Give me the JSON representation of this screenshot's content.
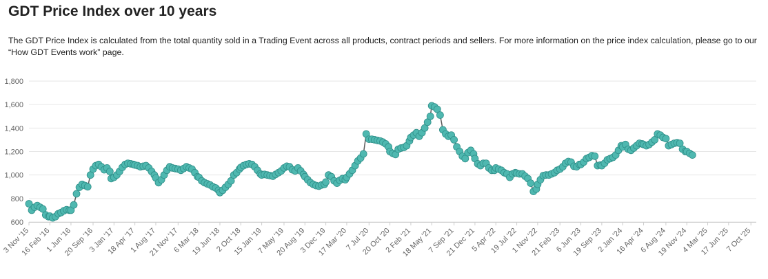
{
  "page": {
    "title": "GDT Price Index over 10 years",
    "description": "The GDT Price Index is calculated from the total quantity sold in a Trading Event across all products, contract periods and sellers. For more information on the price index calculation, please go to our “How GDT Events work” page."
  },
  "colors": {
    "line": "#5a5a5a",
    "marker": "#4fb8b0",
    "marker_edge": "#2f8f89",
    "grid": "#e6e6e6"
  },
  "chart_data": {
    "type": "line",
    "title": "GDT Price Index over 10 years",
    "xlabel": "",
    "ylabel": "",
    "ylim": [
      600,
      1800
    ],
    "yticks": [
      600,
      800,
      1000,
      1200,
      1400,
      1600,
      1800
    ],
    "ytick_labels": [
      "600",
      "800",
      "1,000",
      "1,200",
      "1,400",
      "1,600",
      "1,800"
    ],
    "grid": true,
    "xlim_index": [
      0,
      3653
    ],
    "xticks": [
      {
        "label": "3 Nov '15",
        "day": 0
      },
      {
        "label": "16 Feb '16",
        "day": 105
      },
      {
        "label": "1 Jun '16",
        "day": 211
      },
      {
        "label": "20 Sep '16",
        "day": 322
      },
      {
        "label": "3 Jan '17",
        "day": 427
      },
      {
        "label": "18 Apr '17",
        "day": 532
      },
      {
        "label": "1 Aug '17",
        "day": 637
      },
      {
        "label": "21 Nov '17",
        "day": 749
      },
      {
        "label": "6 Mar '18",
        "day": 854
      },
      {
        "label": "19 Jun '18",
        "day": 959
      },
      {
        "label": "2 Oct '18",
        "day": 1064
      },
      {
        "label": "15 Jan '19",
        "day": 1169
      },
      {
        "label": "7 May '19",
        "day": 1281
      },
      {
        "label": "20 Aug '19",
        "day": 1386
      },
      {
        "label": "3 Dec '19",
        "day": 1491
      },
      {
        "label": "17 Mar '20",
        "day": 1596
      },
      {
        "label": "7 Jul '20",
        "day": 1708
      },
      {
        "label": "20 Oct '20",
        "day": 1813
      },
      {
        "label": "2 Feb '21",
        "day": 1918
      },
      {
        "label": "18 May '21",
        "day": 2023
      },
      {
        "label": "7 Sep '21",
        "day": 2135
      },
      {
        "label": "21 Dec '21",
        "day": 2240
      },
      {
        "label": "5 Apr '22",
        "day": 2345
      },
      {
        "label": "19 Jul '22",
        "day": 2450
      },
      {
        "label": "1 Nov '22",
        "day": 2555
      },
      {
        "label": "21 Feb '23",
        "day": 2667
      },
      {
        "label": "6 Jun '23",
        "day": 2772
      },
      {
        "label": "19 Sep '23",
        "day": 2877
      },
      {
        "label": "2 Jan '24",
        "day": 2982
      },
      {
        "label": "16 Apr '24",
        "day": 3087
      },
      {
        "label": "6 Aug '24",
        "day": 3199
      },
      {
        "label": "19 Nov '24",
        "day": 3304
      },
      {
        "label": "4 Mar '25",
        "day": 3409
      },
      {
        "label": "17 Jun '25",
        "day": 3514
      },
      {
        "label": "7 Oct '25",
        "day": 3626
      }
    ],
    "series": [
      {
        "values": [
          [
            0,
            755
          ],
          [
            14,
            700
          ],
          [
            28,
            725
          ],
          [
            42,
            740
          ],
          [
            56,
            725
          ],
          [
            70,
            710
          ],
          [
            84,
            660
          ],
          [
            98,
            645
          ],
          [
            105,
            650
          ],
          [
            119,
            635
          ],
          [
            133,
            645
          ],
          [
            147,
            670
          ],
          [
            161,
            680
          ],
          [
            175,
            695
          ],
          [
            189,
            705
          ],
          [
            203,
            700
          ],
          [
            211,
            700
          ],
          [
            225,
            745
          ],
          [
            239,
            840
          ],
          [
            253,
            895
          ],
          [
            267,
            920
          ],
          [
            281,
            910
          ],
          [
            295,
            900
          ],
          [
            309,
            1000
          ],
          [
            322,
            1050
          ],
          [
            336,
            1080
          ],
          [
            350,
            1090
          ],
          [
            364,
            1070
          ],
          [
            378,
            1045
          ],
          [
            392,
            1060
          ],
          [
            406,
            1030
          ],
          [
            413,
            970
          ],
          [
            427,
            980
          ],
          [
            441,
            1000
          ],
          [
            455,
            1030
          ],
          [
            469,
            1065
          ],
          [
            483,
            1090
          ],
          [
            497,
            1100
          ],
          [
            511,
            1095
          ],
          [
            525,
            1090
          ],
          [
            532,
            1085
          ],
          [
            546,
            1080
          ],
          [
            560,
            1070
          ],
          [
            574,
            1075
          ],
          [
            588,
            1080
          ],
          [
            602,
            1060
          ],
          [
            616,
            1030
          ],
          [
            630,
            1000
          ],
          [
            637,
            975
          ],
          [
            651,
            935
          ],
          [
            665,
            960
          ],
          [
            679,
            1000
          ],
          [
            693,
            1040
          ],
          [
            707,
            1070
          ],
          [
            721,
            1060
          ],
          [
            735,
            1055
          ],
          [
            749,
            1050
          ],
          [
            763,
            1040
          ],
          [
            777,
            1055
          ],
          [
            791,
            1070
          ],
          [
            805,
            1060
          ],
          [
            819,
            1050
          ],
          [
            833,
            1020
          ],
          [
            847,
            985
          ],
          [
            854,
            980
          ],
          [
            868,
            950
          ],
          [
            882,
            935
          ],
          [
            896,
            925
          ],
          [
            910,
            915
          ],
          [
            924,
            900
          ],
          [
            938,
            890
          ],
          [
            952,
            870
          ],
          [
            959,
            850
          ],
          [
            973,
            870
          ],
          [
            987,
            895
          ],
          [
            1001,
            920
          ],
          [
            1015,
            950
          ],
          [
            1029,
            1000
          ],
          [
            1043,
            1020
          ],
          [
            1057,
            1050
          ],
          [
            1064,
            1065
          ],
          [
            1078,
            1080
          ],
          [
            1092,
            1090
          ],
          [
            1106,
            1095
          ],
          [
            1120,
            1090
          ],
          [
            1134,
            1070
          ],
          [
            1148,
            1040
          ],
          [
            1162,
            1010
          ],
          [
            1169,
            1000
          ],
          [
            1183,
            1005
          ],
          [
            1197,
            1000
          ],
          [
            1211,
            995
          ],
          [
            1225,
            990
          ],
          [
            1239,
            1005
          ],
          [
            1253,
            1020
          ],
          [
            1267,
            1035
          ],
          [
            1281,
            1060
          ],
          [
            1295,
            1075
          ],
          [
            1309,
            1070
          ],
          [
            1323,
            1045
          ],
          [
            1337,
            1035
          ],
          [
            1351,
            1060
          ],
          [
            1365,
            1035
          ],
          [
            1379,
            1005
          ],
          [
            1386,
            985
          ],
          [
            1400,
            960
          ],
          [
            1414,
            935
          ],
          [
            1428,
            920
          ],
          [
            1442,
            910
          ],
          [
            1456,
            905
          ],
          [
            1470,
            915
          ],
          [
            1484,
            920
          ],
          [
            1491,
            940
          ],
          [
            1505,
            1000
          ],
          [
            1519,
            985
          ],
          [
            1533,
            950
          ],
          [
            1547,
            930
          ],
          [
            1561,
            955
          ],
          [
            1575,
            970
          ],
          [
            1589,
            960
          ],
          [
            1596,
            980
          ],
          [
            1610,
            1010
          ],
          [
            1624,
            1040
          ],
          [
            1638,
            1080
          ],
          [
            1652,
            1120
          ],
          [
            1666,
            1145
          ],
          [
            1680,
            1180
          ],
          [
            1694,
            1350
          ],
          [
            1708,
            1305
          ],
          [
            1722,
            1305
          ],
          [
            1736,
            1300
          ],
          [
            1750,
            1295
          ],
          [
            1764,
            1290
          ],
          [
            1778,
            1280
          ],
          [
            1792,
            1265
          ],
          [
            1806,
            1240
          ],
          [
            1813,
            1200
          ],
          [
            1827,
            1185
          ],
          [
            1841,
            1175
          ],
          [
            1855,
            1220
          ],
          [
            1869,
            1230
          ],
          [
            1883,
            1235
          ],
          [
            1897,
            1250
          ],
          [
            1911,
            1290
          ],
          [
            1918,
            1320
          ],
          [
            1932,
            1340
          ],
          [
            1946,
            1360
          ],
          [
            1960,
            1330
          ],
          [
            1974,
            1360
          ],
          [
            1988,
            1400
          ],
          [
            2002,
            1450
          ],
          [
            2016,
            1500
          ],
          [
            2023,
            1590
          ],
          [
            2037,
            1580
          ],
          [
            2051,
            1560
          ],
          [
            2065,
            1510
          ],
          [
            2079,
            1385
          ],
          [
            2093,
            1350
          ],
          [
            2107,
            1330
          ],
          [
            2121,
            1340
          ],
          [
            2135,
            1300
          ],
          [
            2149,
            1240
          ],
          [
            2163,
            1200
          ],
          [
            2177,
            1160
          ],
          [
            2191,
            1140
          ],
          [
            2205,
            1190
          ],
          [
            2219,
            1210
          ],
          [
            2233,
            1180
          ],
          [
            2240,
            1140
          ],
          [
            2254,
            1095
          ],
          [
            2268,
            1080
          ],
          [
            2282,
            1100
          ],
          [
            2296,
            1100
          ],
          [
            2310,
            1060
          ],
          [
            2324,
            1040
          ],
          [
            2338,
            1040
          ],
          [
            2345,
            1060
          ],
          [
            2359,
            1050
          ],
          [
            2373,
            1040
          ],
          [
            2387,
            1020
          ],
          [
            2401,
            1010
          ],
          [
            2415,
            980
          ],
          [
            2429,
            1010
          ],
          [
            2443,
            1020
          ],
          [
            2450,
            1015
          ],
          [
            2464,
            1010
          ],
          [
            2478,
            1010
          ],
          [
            2492,
            990
          ],
          [
            2506,
            970
          ],
          [
            2520,
            930
          ],
          [
            2534,
            860
          ],
          [
            2548,
            880
          ],
          [
            2555,
            920
          ],
          [
            2569,
            960
          ],
          [
            2583,
            995
          ],
          [
            2597,
            1000
          ],
          [
            2611,
            1000
          ],
          [
            2625,
            1010
          ],
          [
            2639,
            1020
          ],
          [
            2653,
            1040
          ],
          [
            2667,
            1050
          ],
          [
            2681,
            1070
          ],
          [
            2695,
            1100
          ],
          [
            2709,
            1115
          ],
          [
            2723,
            1110
          ],
          [
            2737,
            1075
          ],
          [
            2751,
            1070
          ],
          [
            2765,
            1090
          ],
          [
            2772,
            1090
          ],
          [
            2786,
            1110
          ],
          [
            2800,
            1140
          ],
          [
            2814,
            1150
          ],
          [
            2828,
            1165
          ],
          [
            2842,
            1160
          ],
          [
            2856,
            1080
          ],
          [
            2870,
            1085
          ],
          [
            2877,
            1080
          ],
          [
            2891,
            1100
          ],
          [
            2905,
            1130
          ],
          [
            2919,
            1140
          ],
          [
            2933,
            1150
          ],
          [
            2947,
            1170
          ],
          [
            2961,
            1210
          ],
          [
            2975,
            1250
          ],
          [
            2982,
            1240
          ],
          [
            2996,
            1260
          ],
          [
            3010,
            1220
          ],
          [
            3024,
            1210
          ],
          [
            3038,
            1230
          ],
          [
            3052,
            1250
          ],
          [
            3066,
            1270
          ],
          [
            3080,
            1265
          ],
          [
            3087,
            1260
          ],
          [
            3101,
            1250
          ],
          [
            3115,
            1260
          ],
          [
            3129,
            1280
          ],
          [
            3143,
            1300
          ],
          [
            3157,
            1350
          ],
          [
            3171,
            1340
          ],
          [
            3185,
            1320
          ],
          [
            3199,
            1310
          ],
          [
            3213,
            1250
          ],
          [
            3227,
            1260
          ],
          [
            3241,
            1270
          ],
          [
            3255,
            1275
          ],
          [
            3269,
            1270
          ],
          [
            3283,
            1220
          ],
          [
            3297,
            1200
          ],
          [
            3304,
            1200
          ],
          [
            3318,
            1185
          ],
          [
            3332,
            1170
          ]
        ]
      }
    ]
  }
}
